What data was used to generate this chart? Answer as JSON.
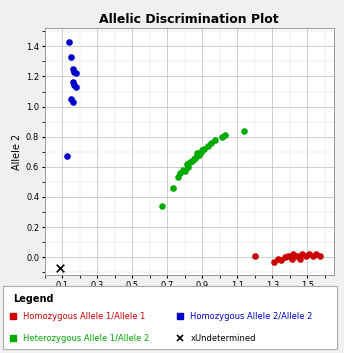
{
  "title": "Allelic Discrimination Plot",
  "xlabel": "Allele 1",
  "ylabel": "Allele 2",
  "xlim": [
    0.0,
    1.65
  ],
  "ylim": [
    -0.12,
    1.52
  ],
  "xticks": [
    0.1,
    0.3,
    0.5,
    0.7,
    0.9,
    1.1,
    1.3,
    1.5
  ],
  "yticks": [
    0.0,
    0.2,
    0.4,
    0.6,
    0.8,
    1.0,
    1.2,
    1.4
  ],
  "red_points": [
    [
      1.2,
      0.01
    ],
    [
      1.31,
      -0.03
    ],
    [
      1.33,
      -0.01
    ],
    [
      1.35,
      -0.02
    ],
    [
      1.37,
      0.0
    ],
    [
      1.39,
      0.01
    ],
    [
      1.41,
      -0.01
    ],
    [
      1.42,
      0.02
    ],
    [
      1.44,
      0.01
    ],
    [
      1.46,
      -0.01
    ],
    [
      1.47,
      0.02
    ],
    [
      1.49,
      0.01
    ],
    [
      1.51,
      0.02
    ],
    [
      1.53,
      0.01
    ],
    [
      1.55,
      0.02
    ],
    [
      1.57,
      0.01
    ]
  ],
  "blue_points": [
    [
      0.14,
      1.43
    ],
    [
      0.15,
      1.33
    ],
    [
      0.16,
      1.25
    ],
    [
      0.17,
      1.23
    ],
    [
      0.18,
      1.22
    ],
    [
      0.16,
      1.16
    ],
    [
      0.17,
      1.14
    ],
    [
      0.18,
      1.13
    ],
    [
      0.15,
      1.05
    ],
    [
      0.16,
      1.03
    ],
    [
      0.13,
      0.67
    ]
  ],
  "green_points": [
    [
      0.67,
      0.34
    ],
    [
      0.73,
      0.46
    ],
    [
      0.76,
      0.53
    ],
    [
      0.77,
      0.56
    ],
    [
      0.79,
      0.58
    ],
    [
      0.8,
      0.57
    ],
    [
      0.81,
      0.62
    ],
    [
      0.82,
      0.6
    ],
    [
      0.83,
      0.63
    ],
    [
      0.84,
      0.64
    ],
    [
      0.85,
      0.65
    ],
    [
      0.86,
      0.66
    ],
    [
      0.87,
      0.67
    ],
    [
      0.88,
      0.68
    ],
    [
      0.87,
      0.69
    ],
    [
      0.89,
      0.7
    ],
    [
      0.9,
      0.71
    ],
    [
      0.91,
      0.72
    ],
    [
      0.93,
      0.74
    ],
    [
      0.95,
      0.76
    ],
    [
      0.97,
      0.78
    ],
    [
      1.01,
      0.8
    ],
    [
      1.03,
      0.81
    ],
    [
      1.14,
      0.84
    ]
  ],
  "undetermined_points": [
    [
      0.09,
      -0.07
    ]
  ],
  "red_color": "#cc0000",
  "blue_color": "#0000cc",
  "green_color": "#00aa00",
  "undetermined_color": "#000000",
  "bg_color": "#f0f0f0",
  "plot_bg": "#ffffff",
  "grid_major_color": "#bbbbbb",
  "grid_minor_color": "#dddddd",
  "legend_title": "Legend",
  "legend_labels": [
    "Homozygous Allele 1/Allele 1",
    "Homozygous Allele 2/Allele 2",
    "Heterozygous Allele 1/Allele 2",
    "xUndetermined"
  ],
  "title_fontsize": 9,
  "axis_label_fontsize": 7,
  "tick_fontsize": 6,
  "legend_fontsize": 6,
  "legend_title_fontsize": 7,
  "marker_size": 14
}
